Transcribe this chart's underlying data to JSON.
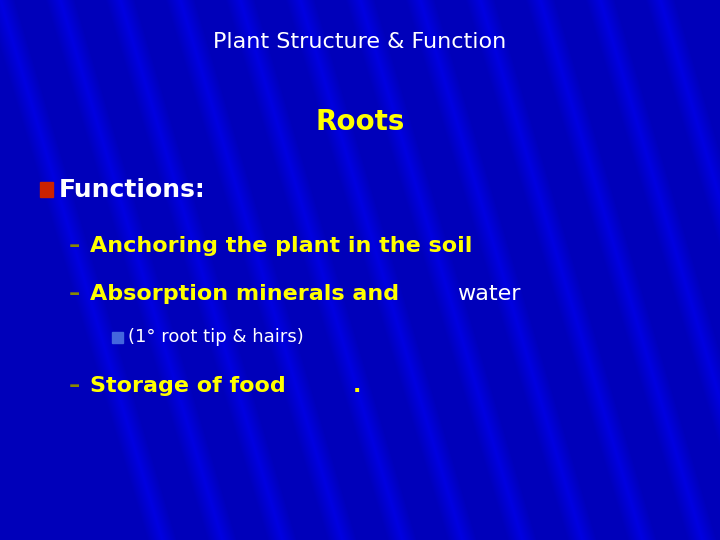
{
  "title": "Plant Structure & Function",
  "title_color": "#FFFFFF",
  "title_fontsize": 16,
  "subtitle": "Roots",
  "subtitle_color": "#FFFF00",
  "subtitle_fontsize": 20,
  "background_color": "#0000BB",
  "bullet1_text": "Functions:",
  "bullet1_color": "#FFFFFF",
  "bullet1_fontsize": 18,
  "bullet1_icon_color": "#CC2200",
  "line1_bold": "Anchoring the plant in the soil",
  "line1_color": "#FFFF00",
  "line1_fontsize": 16,
  "line2_bold": "Absorption minerals and ",
  "line2_normal": "water",
  "line2_bold_color": "#FFFF00",
  "line2_normal_color": "#FFFFFF",
  "line2_fontsize": 16,
  "line3_text": "(1° root tip & hairs)",
  "line3_color": "#FFFFFF",
  "line3_fontsize": 13,
  "line3_icon_color": "#4466DD",
  "line4_bold": "Storage of food",
  "line4_period": ".",
  "line4_color": "#FFFF00",
  "line4_fontsize": 16,
  "dash_color": "#888800"
}
